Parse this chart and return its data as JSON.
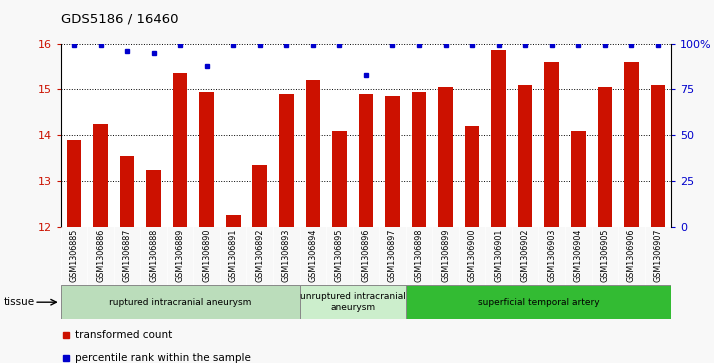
{
  "title": "GDS5186 / 16460",
  "samples": [
    "GSM1306885",
    "GSM1306886",
    "GSM1306887",
    "GSM1306888",
    "GSM1306889",
    "GSM1306890",
    "GSM1306891",
    "GSM1306892",
    "GSM1306893",
    "GSM1306894",
    "GSM1306895",
    "GSM1306896",
    "GSM1306897",
    "GSM1306898",
    "GSM1306899",
    "GSM1306900",
    "GSM1306901",
    "GSM1306902",
    "GSM1306903",
    "GSM1306904",
    "GSM1306905",
    "GSM1306906",
    "GSM1306907"
  ],
  "bar_values": [
    13.9,
    14.25,
    13.55,
    13.25,
    15.35,
    14.95,
    12.25,
    13.35,
    14.9,
    15.2,
    14.1,
    14.9,
    14.85,
    14.95,
    15.05,
    14.2,
    15.85,
    15.1,
    15.6,
    14.1,
    15.05,
    15.6,
    15.1
  ],
  "percentile_values": [
    99,
    99,
    96,
    95,
    99,
    88,
    99,
    99,
    99,
    99,
    99,
    83,
    99,
    99,
    99,
    99,
    99,
    99,
    99,
    99,
    99,
    99,
    99
  ],
  "ylim_left": [
    12,
    16
  ],
  "ylim_right": [
    0,
    100
  ],
  "yticks_left": [
    12,
    13,
    14,
    15,
    16
  ],
  "yticks_right": [
    0,
    25,
    50,
    75,
    100
  ],
  "ytick_right_labels": [
    "0",
    "25",
    "50",
    "75",
    "100%"
  ],
  "bar_color": "#cc1100",
  "dot_color": "#0000cc",
  "groups": [
    {
      "label": "ruptured intracranial aneurysm",
      "start": 0,
      "end": 8,
      "color": "#bbddbb"
    },
    {
      "label": "unruptured intracranial\naneurysm",
      "start": 9,
      "end": 12,
      "color": "#cceecc"
    },
    {
      "label": "superficial temporal artery",
      "start": 13,
      "end": 22,
      "color": "#33bb33"
    }
  ],
  "legend_items": [
    {
      "label": "transformed count",
      "color": "#cc1100"
    },
    {
      "label": "percentile rank within the sample",
      "color": "#0000cc"
    }
  ],
  "tissue_label": "tissue",
  "xticklabel_bg": "#d8d8d8",
  "fig_bg": "#f8f8f8",
  "plot_bg": "#ffffff"
}
